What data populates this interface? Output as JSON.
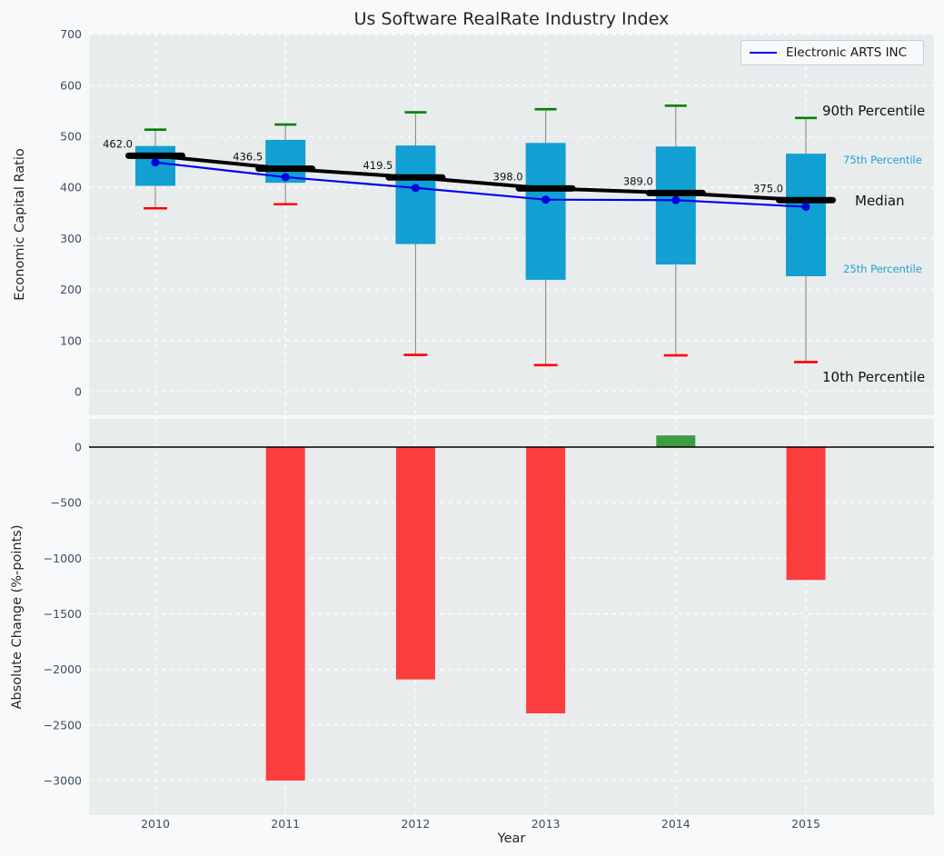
{
  "figure_title": "Us Software RealRate Industry Index",
  "legend": {
    "label": "Electronic ARTS INC",
    "line_color": "#0000ee"
  },
  "colors": {
    "figure_bg": "#f7f9fa",
    "axes_bg": "#e9eced",
    "grid": "#ffffff",
    "box_fill": "#129fd2",
    "median_line": "#000000",
    "company_line": "#0000ee",
    "company_marker": "#0000dd",
    "whisker": "#8a8a8a",
    "cap_90": "#008000",
    "cap_10": "#ff0000",
    "bar_negative": "#fb3d3d",
    "bar_positive": "#3d9c43",
    "tick_label": "#3d4e63",
    "annotation": "#111111"
  },
  "chart_data": [
    {
      "type": "boxplot",
      "title": "Us Software RealRate Industry Index",
      "ylabel": "Economic Capital Ratio",
      "x": [
        2010,
        2011,
        2012,
        2013,
        2014,
        2015
      ],
      "x_tick_labels": [
        "2010",
        "2011",
        "2012",
        "2013",
        "2014",
        "2015"
      ],
      "series": [
        {
          "name": "Median",
          "values": [
            462.0,
            436.5,
            419.5,
            398.0,
            389.0,
            375.0
          ]
        },
        {
          "name": "75th Percentile",
          "values": [
            481,
            493,
            482,
            487,
            480,
            466
          ]
        },
        {
          "name": "25th Percentile",
          "values": [
            403,
            409,
            289,
            219,
            249,
            226
          ]
        },
        {
          "name": "90th Percentile",
          "values": [
            513,
            523,
            547,
            553,
            560,
            536
          ]
        },
        {
          "name": "10th Percentile",
          "values": [
            359,
            367,
            72,
            52,
            71,
            58
          ]
        },
        {
          "name": "Electronic ARTS INC",
          "values": [
            449,
            420,
            399,
            376,
            375,
            362
          ]
        }
      ],
      "median_annotations": [
        "462.0",
        "436.5",
        "419.5",
        "398.0",
        "389.0",
        "375.0"
      ],
      "percentile_labels": [
        "90th Percentile",
        "75th Percentile",
        "Median",
        "25th Percentile",
        "10th Percentile"
      ],
      "ytick_labels": [
        "0",
        "100",
        "200",
        "300",
        "400",
        "500",
        "600",
        "700"
      ],
      "yticks": [
        0,
        100,
        200,
        300,
        400,
        500,
        600,
        700
      ],
      "ylim": [
        -46,
        700
      ],
      "grid": true,
      "legend_position": "upper right"
    },
    {
      "type": "bar",
      "ylabel": "Absolute Change (%-points)",
      "xlabel": "Year",
      "categories": [
        "2010",
        "2011",
        "2012",
        "2013",
        "2014",
        "2015"
      ],
      "values": [
        null,
        -3000,
        -2090,
        -2395,
        105,
        -1195
      ],
      "ytick_labels": [
        "0",
        "−500",
        "−1000",
        "−1500",
        "−2000",
        "−2500",
        "−3000"
      ],
      "yticks": [
        0,
        -500,
        -1000,
        -1500,
        -2000,
        -2500,
        -3000
      ],
      "ylim": [
        -3310,
        253
      ],
      "grid": true
    }
  ]
}
